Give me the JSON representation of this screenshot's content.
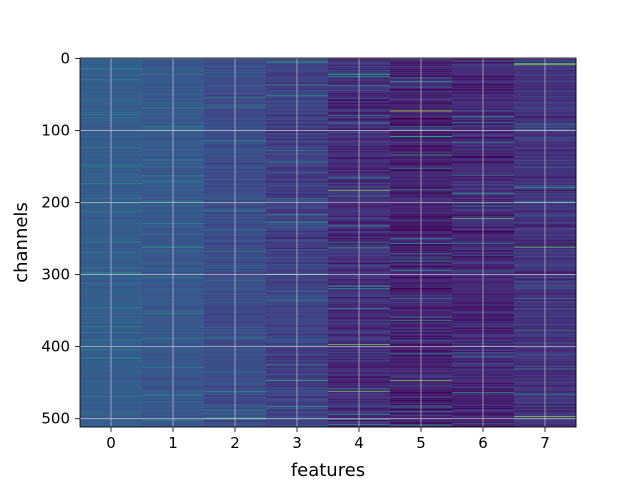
{
  "chart_data": {
    "type": "heatmap",
    "title": "",
    "xlabel": "features",
    "ylabel": "channels",
    "x_ticks": [
      "0",
      "1",
      "2",
      "3",
      "4",
      "5",
      "6",
      "7"
    ],
    "y_ticks": [
      "0",
      "100",
      "200",
      "300",
      "400",
      "500"
    ],
    "y_tick_values": [
      0,
      100,
      200,
      300,
      400,
      500
    ],
    "n_channels": 512,
    "n_features": 8,
    "xlim": [
      -0.5,
      7.5
    ],
    "ylim": [
      511.5,
      -0.5
    ],
    "y_inverted": true,
    "grid": true,
    "colormap": "viridis",
    "feature_level": [
      0.3,
      0.28,
      0.24,
      0.2,
      0.14,
      0.1,
      0.12,
      0.16
    ],
    "feature_spread": [
      0.05,
      0.07,
      0.1,
      0.14,
      0.17,
      0.18,
      0.17,
      0.15
    ],
    "bright_stripes": [
      {
        "feature": 7,
        "channel": 8,
        "value": 0.95
      },
      {
        "feature": 5,
        "channel": 73,
        "value": 0.92
      },
      {
        "feature": 4,
        "channel": 183,
        "value": 0.85
      },
      {
        "feature": 6,
        "channel": 222,
        "value": 0.75
      },
      {
        "feature": 7,
        "channel": 262,
        "value": 0.75
      },
      {
        "feature": 1,
        "channel": 262,
        "value": 0.55
      },
      {
        "feature": 3,
        "channel": 300,
        "value": 0.72
      },
      {
        "feature": 4,
        "channel": 397,
        "value": 0.8
      },
      {
        "feature": 4,
        "channel": 462,
        "value": 0.78
      },
      {
        "feature": 5,
        "channel": 447,
        "value": 0.8
      },
      {
        "feature": 7,
        "channel": 497,
        "value": 0.85
      },
      {
        "feature": 2,
        "channel": 500,
        "value": 0.7
      },
      {
        "feature": 3,
        "channel": 447,
        "value": 0.65
      }
    ]
  },
  "colors": {
    "grid": "#d9d9d9",
    "axis": "#000000",
    "background": "#ffffff"
  }
}
